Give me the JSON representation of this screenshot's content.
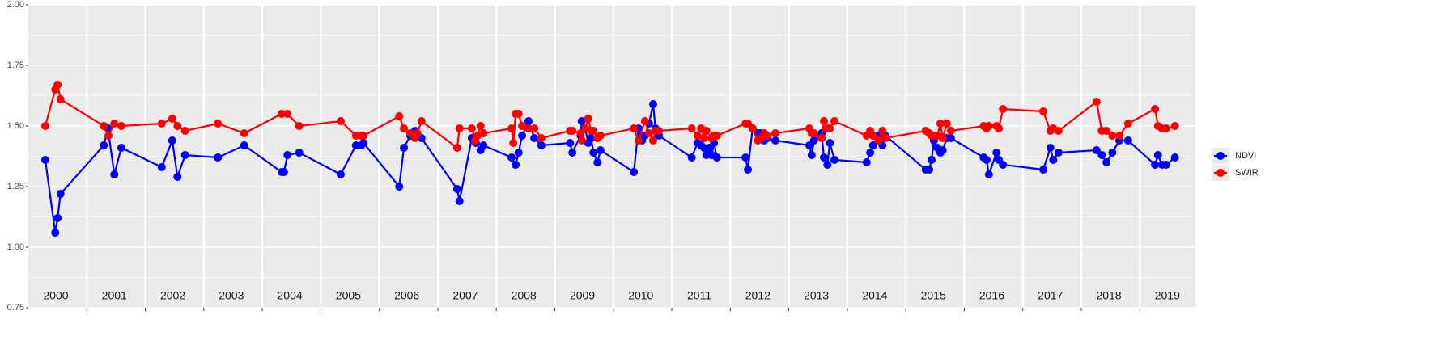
{
  "chart_data": {
    "type": "line",
    "xlim": [
      2000,
      2019.95
    ],
    "ylim": [
      0.75,
      2.0
    ],
    "yticks": [
      {
        "value": 0.75,
        "label": "0.75"
      },
      {
        "value": 1.0,
        "label": "1.00"
      },
      {
        "value": 1.25,
        "label": "1.25"
      },
      {
        "value": 1.5,
        "label": "1.50"
      },
      {
        "value": 1.75,
        "label": "1.75"
      },
      {
        "value": 2.0,
        "label": "2.00"
      }
    ],
    "xticks": [
      {
        "value": 2000.47,
        "label": "2000"
      },
      {
        "value": 2001.47,
        "label": "2001"
      },
      {
        "value": 2002.47,
        "label": "2002"
      },
      {
        "value": 2003.47,
        "label": "2003"
      },
      {
        "value": 2004.47,
        "label": "2004"
      },
      {
        "value": 2005.47,
        "label": "2005"
      },
      {
        "value": 2006.47,
        "label": "2006"
      },
      {
        "value": 2007.47,
        "label": "2007"
      },
      {
        "value": 2008.47,
        "label": "2008"
      },
      {
        "value": 2009.47,
        "label": "2009"
      },
      {
        "value": 2010.47,
        "label": "2010"
      },
      {
        "value": 2011.47,
        "label": "2011"
      },
      {
        "value": 2012.47,
        "label": "2012"
      },
      {
        "value": 2013.47,
        "label": "2013"
      },
      {
        "value": 2014.47,
        "label": "2014"
      },
      {
        "value": 2015.47,
        "label": "2015"
      },
      {
        "value": 2016.47,
        "label": "2016"
      },
      {
        "value": 2017.47,
        "label": "2017"
      },
      {
        "value": 2018.47,
        "label": "2018"
      },
      {
        "value": 2019.47,
        "label": "2019"
      }
    ],
    "x_grid": [
      2001,
      2002,
      2003,
      2004,
      2005,
      2006,
      2007,
      2008,
      2009,
      2010,
      2011,
      2012,
      2013,
      2014,
      2015,
      2016,
      2017,
      2018,
      2019
    ],
    "grid": true,
    "legend": "right",
    "series": [
      {
        "name": "NDVI",
        "color": "#0000ff",
        "x": [
          2000.29,
          2000.46,
          2000.5,
          2000.55,
          2001.29,
          2001.36,
          2001.47,
          2001.59,
          2002.28,
          2002.46,
          2002.55,
          2002.68,
          2003.24,
          2003.69,
          2004.33,
          2004.37,
          2004.43,
          2004.63,
          2005.34,
          2005.6,
          2005.69,
          2005.73,
          2006.34,
          2006.42,
          2006.53,
          2006.61,
          2006.72,
          2007.33,
          2007.37,
          2007.58,
          2007.65,
          2007.73,
          2007.78,
          2008.26,
          2008.33,
          2008.38,
          2008.44,
          2008.55,
          2008.65,
          2008.77,
          2009.26,
          2009.3,
          2009.44,
          2009.46,
          2009.52,
          2009.57,
          2009.62,
          2009.66,
          2009.73,
          2009.78,
          2010.35,
          2010.43,
          2010.49,
          2010.54,
          2010.61,
          2010.68,
          2010.72,
          2010.78,
          2011.34,
          2011.44,
          2011.5,
          2011.55,
          2011.59,
          2011.64,
          2011.68,
          2011.72,
          2011.77,
          2012.26,
          2012.3,
          2012.38,
          2012.47,
          2012.52,
          2012.58,
          2012.63,
          2012.77,
          2013.35,
          2013.39,
          2013.43,
          2013.56,
          2013.6,
          2013.66,
          2013.7,
          2013.78,
          2014.33,
          2014.39,
          2014.44,
          2014.53,
          2014.6,
          2014.65,
          2015.34,
          2015.4,
          2015.44,
          2015.48,
          2015.54,
          2015.59,
          2015.63,
          2015.7,
          2015.77,
          2016.33,
          2016.38,
          2016.42,
          2016.55,
          2016.59,
          2016.66,
          2017.35,
          2017.47,
          2017.52,
          2017.61,
          2018.26,
          2018.35,
          2018.43,
          2018.53,
          2018.65,
          2018.8,
          2019.26,
          2019.31,
          2019.38,
          2019.45,
          2019.6
        ],
        "values": [
          1.36,
          1.06,
          1.12,
          1.22,
          1.42,
          1.49,
          1.3,
          1.41,
          1.33,
          1.44,
          1.29,
          1.38,
          1.37,
          1.42,
          1.31,
          1.31,
          1.38,
          1.39,
          1.3,
          1.42,
          1.42,
          1.43,
          1.25,
          1.41,
          1.46,
          1.48,
          1.45,
          1.24,
          1.19,
          1.45,
          1.43,
          1.4,
          1.42,
          1.37,
          1.34,
          1.39,
          1.46,
          1.52,
          1.45,
          1.42,
          1.43,
          1.39,
          1.46,
          1.52,
          1.49,
          1.43,
          1.45,
          1.39,
          1.35,
          1.4,
          1.31,
          1.49,
          1.44,
          1.46,
          1.51,
          1.59,
          1.49,
          1.46,
          1.37,
          1.43,
          1.42,
          1.41,
          1.38,
          1.41,
          1.38,
          1.43,
          1.37,
          1.37,
          1.32,
          1.49,
          1.47,
          1.47,
          1.44,
          1.45,
          1.44,
          1.42,
          1.38,
          1.44,
          1.47,
          1.37,
          1.34,
          1.43,
          1.36,
          1.35,
          1.39,
          1.42,
          1.46,
          1.42,
          1.46,
          1.32,
          1.32,
          1.36,
          1.44,
          1.41,
          1.39,
          1.4,
          1.45,
          1.45,
          1.37,
          1.36,
          1.3,
          1.39,
          1.36,
          1.34,
          1.32,
          1.41,
          1.36,
          1.39,
          1.4,
          1.38,
          1.35,
          1.39,
          1.44,
          1.44,
          1.34,
          1.38,
          1.34,
          1.34,
          1.37
        ]
      },
      {
        "name": "SWIR",
        "color": "#ff0000",
        "x": [
          2000.29,
          2000.46,
          2000.5,
          2000.55,
          2001.29,
          2001.37,
          2001.47,
          2001.59,
          2002.28,
          2002.46,
          2002.55,
          2002.68,
          2003.24,
          2003.69,
          2004.33,
          2004.43,
          2004.63,
          2005.34,
          2005.6,
          2005.69,
          2005.73,
          2006.34,
          2006.42,
          2006.53,
          2006.61,
          2006.65,
          2006.72,
          2007.33,
          2007.37,
          2007.58,
          2007.64,
          2007.68,
          2007.73,
          2007.78,
          2008.26,
          2008.29,
          2008.33,
          2008.38,
          2008.44,
          2008.55,
          2008.65,
          2008.77,
          2009.26,
          2009.3,
          2009.44,
          2009.46,
          2009.52,
          2009.57,
          2009.62,
          2009.66,
          2009.73,
          2009.78,
          2010.35,
          2010.43,
          2010.54,
          2010.61,
          2010.68,
          2010.72,
          2010.78,
          2011.34,
          2011.44,
          2011.5,
          2011.55,
          2011.59,
          2011.68,
          2011.72,
          2011.77,
          2012.26,
          2012.3,
          2012.38,
          2012.47,
          2012.52,
          2012.58,
          2012.63,
          2012.77,
          2013.35,
          2013.39,
          2013.43,
          2013.56,
          2013.6,
          2013.66,
          2013.7,
          2013.78,
          2014.33,
          2014.39,
          2014.44,
          2014.53,
          2014.6,
          2014.65,
          2015.34,
          2015.4,
          2015.44,
          2015.48,
          2015.54,
          2015.59,
          2015.63,
          2015.7,
          2015.77,
          2016.33,
          2016.38,
          2016.42,
          2016.55,
          2016.59,
          2016.66,
          2017.35,
          2017.47,
          2017.52,
          2017.61,
          2018.26,
          2018.35,
          2018.43,
          2018.53,
          2018.65,
          2018.8,
          2019.26,
          2019.31,
          2019.38,
          2019.45,
          2019.6
        ],
        "values": [
          1.5,
          1.65,
          1.67,
          1.61,
          1.5,
          1.46,
          1.51,
          1.5,
          1.51,
          1.53,
          1.5,
          1.48,
          1.51,
          1.47,
          1.55,
          1.55,
          1.5,
          1.52,
          1.46,
          1.46,
          1.46,
          1.54,
          1.49,
          1.47,
          1.45,
          1.47,
          1.52,
          1.41,
          1.49,
          1.49,
          1.44,
          1.46,
          1.5,
          1.47,
          1.49,
          1.43,
          1.55,
          1.55,
          1.5,
          1.49,
          1.49,
          1.45,
          1.48,
          1.48,
          1.47,
          1.44,
          1.49,
          1.53,
          1.48,
          1.48,
          1.45,
          1.46,
          1.49,
          1.44,
          1.52,
          1.47,
          1.44,
          1.48,
          1.48,
          1.49,
          1.46,
          1.49,
          1.45,
          1.48,
          1.45,
          1.46,
          1.46,
          1.51,
          1.51,
          1.49,
          1.44,
          1.45,
          1.47,
          1.46,
          1.47,
          1.49,
          1.47,
          1.47,
          1.45,
          1.52,
          1.49,
          1.49,
          1.52,
          1.46,
          1.48,
          1.46,
          1.44,
          1.48,
          1.45,
          1.48,
          1.47,
          1.46,
          1.46,
          1.46,
          1.51,
          1.45,
          1.51,
          1.48,
          1.5,
          1.49,
          1.5,
          1.5,
          1.49,
          1.57,
          1.56,
          1.48,
          1.49,
          1.48,
          1.6,
          1.48,
          1.48,
          1.46,
          1.46,
          1.51,
          1.57,
          1.5,
          1.49,
          1.49,
          1.5
        ]
      }
    ]
  }
}
